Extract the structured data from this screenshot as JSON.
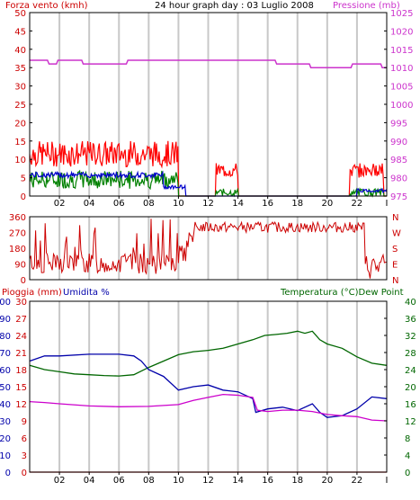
{
  "header": {
    "title": "24 hour graph day : 03 Luglio 2008",
    "left_label": "Forza vento (kmh)",
    "right_label": "Pressione (mb)"
  },
  "colors": {
    "wind_speed": "#ff0000",
    "wind_gust": "#008000",
    "wind_avg": "#0000cc",
    "pressure": "#cc33cc",
    "direction": "#cc0000",
    "temperature": "#006600",
    "humidity": "#0000aa",
    "dewpoint": "#cc00cc",
    "rain": "#cc0000",
    "grid": "#c8c8c8"
  },
  "x_ticks": [
    "02",
    "04",
    "06",
    "08",
    "10",
    "12",
    "14",
    "16",
    "18",
    "20",
    "22"
  ],
  "panel_direction": {
    "compass": [
      "N",
      "W",
      "S",
      "E",
      "N"
    ]
  },
  "panel_bottom": {
    "left_label_rain": "Pioggia (mm)",
    "left_label_hum": "Umidita %",
    "right_label": "Temperatura (°C)Dew Point"
  },
  "chart_data": [
    {
      "type": "line",
      "title": "24 hour graph day : 03 Luglio 2008",
      "ylabel": "Forza vento (kmh)",
      "y2label": "Pressione (mb)",
      "ylim": [
        0,
        50
      ],
      "y_ticks": [
        0,
        5,
        10,
        15,
        20,
        25,
        30,
        35,
        40,
        45,
        50
      ],
      "y2lim": [
        975,
        1025
      ],
      "y2_ticks": [
        975,
        980,
        985,
        990,
        995,
        1000,
        1005,
        1010,
        1015,
        1020,
        1025
      ],
      "series": [
        {
          "name": "Pressione (mb)",
          "axis": "y2",
          "points": [
            [
              0,
              1012
            ],
            [
              1.2,
              1012
            ],
            [
              1.3,
              1011
            ],
            [
              1.8,
              1011
            ],
            [
              1.9,
              1012
            ],
            [
              3.5,
              1012
            ],
            [
              3.6,
              1011
            ],
            [
              6.5,
              1011
            ],
            [
              6.6,
              1012
            ],
            [
              16.5,
              1012
            ],
            [
              16.6,
              1011
            ],
            [
              18.8,
              1011
            ],
            [
              18.9,
              1010
            ],
            [
              21.6,
              1010
            ],
            [
              21.7,
              1011
            ],
            [
              23.6,
              1011
            ],
            [
              23.7,
              1010
            ],
            [
              24,
              1010
            ]
          ]
        }
      ]
    },
    {
      "type": "line",
      "ylim": [
        0,
        360
      ],
      "y_ticks": [
        0,
        90,
        180,
        270,
        360
      ],
      "series": []
    },
    {
      "type": "line",
      "ylabel": "Pioggia (mm) / Umidita %",
      "y2label": "Temperatura (°C)Dew Point",
      "ylim": [
        0,
        100
      ],
      "y_ticks": [
        0,
        10,
        20,
        30,
        40,
        50,
        60,
        70,
        80,
        90,
        100
      ],
      "ylim_rain": [
        0,
        30
      ],
      "y_ticks_rain": [
        0,
        3,
        6,
        9,
        12,
        15,
        18,
        21,
        24,
        27,
        30
      ],
      "y2lim": [
        0,
        40
      ],
      "y2_ticks": [
        0,
        4,
        8,
        12,
        16,
        20,
        24,
        28,
        32,
        36,
        40
      ],
      "series": [
        {
          "name": "Temperatura (°C)",
          "axis": "y2",
          "points": [
            [
              0,
              25
            ],
            [
              1,
              24
            ],
            [
              2,
              23.5
            ],
            [
              3,
              23
            ],
            [
              4,
              22.8
            ],
            [
              5,
              22.6
            ],
            [
              6,
              22.5
            ],
            [
              7,
              22.8
            ],
            [
              8,
              24.5
            ],
            [
              9,
              26
            ],
            [
              10,
              27.5
            ],
            [
              11,
              28.2
            ],
            [
              12,
              28.5
            ],
            [
              13,
              29
            ],
            [
              14,
              30
            ],
            [
              15,
              31
            ],
            [
              15.8,
              32
            ],
            [
              16.5,
              32.2
            ],
            [
              17.3,
              32.5
            ],
            [
              18,
              33
            ],
            [
              18.5,
              32.5
            ],
            [
              19,
              33
            ],
            [
              19.5,
              31
            ],
            [
              20,
              30
            ],
            [
              21,
              29
            ],
            [
              22,
              27
            ],
            [
              23,
              25.5
            ],
            [
              24,
              25
            ]
          ]
        },
        {
          "name": "Umidita %",
          "axis": "y",
          "points": [
            [
              0,
              65
            ],
            [
              1,
              68
            ],
            [
              2,
              68
            ],
            [
              4,
              69
            ],
            [
              6,
              69
            ],
            [
              7,
              68
            ],
            [
              7.5,
              65
            ],
            [
              8,
              60
            ],
            [
              9,
              56
            ],
            [
              10,
              48
            ],
            [
              11,
              50
            ],
            [
              12,
              51
            ],
            [
              13,
              48
            ],
            [
              14,
              47
            ],
            [
              15,
              43
            ],
            [
              15.2,
              35
            ],
            [
              16,
              37
            ],
            [
              17,
              38
            ],
            [
              18,
              36
            ],
            [
              19,
              40
            ],
            [
              19.5,
              35
            ],
            [
              20,
              32
            ],
            [
              21,
              33
            ],
            [
              22,
              37
            ],
            [
              23,
              44
            ],
            [
              24,
              43
            ]
          ]
        },
        {
          "name": "Dew Point",
          "axis": "y2",
          "points": [
            [
              0,
              16.5
            ],
            [
              1,
              16.3
            ],
            [
              2,
              16
            ],
            [
              4,
              15.5
            ],
            [
              6,
              15.3
            ],
            [
              8,
              15.4
            ],
            [
              10,
              15.8
            ],
            [
              11,
              16.8
            ],
            [
              12,
              17.5
            ],
            [
              13,
              18.2
            ],
            [
              14,
              18
            ],
            [
              15,
              17.5
            ],
            [
              15.3,
              14.5
            ],
            [
              16,
              14.2
            ],
            [
              17,
              14.5
            ],
            [
              18,
              14.5
            ],
            [
              19,
              14.2
            ],
            [
              20,
              13.5
            ],
            [
              21,
              13.2
            ],
            [
              22,
              13
            ],
            [
              23,
              12.2
            ],
            [
              24,
              12
            ]
          ]
        },
        {
          "name": "Pioggia (mm)",
          "axis": "rain",
          "points": [
            [
              0,
              0
            ],
            [
              24,
              0
            ]
          ]
        }
      ]
    }
  ]
}
